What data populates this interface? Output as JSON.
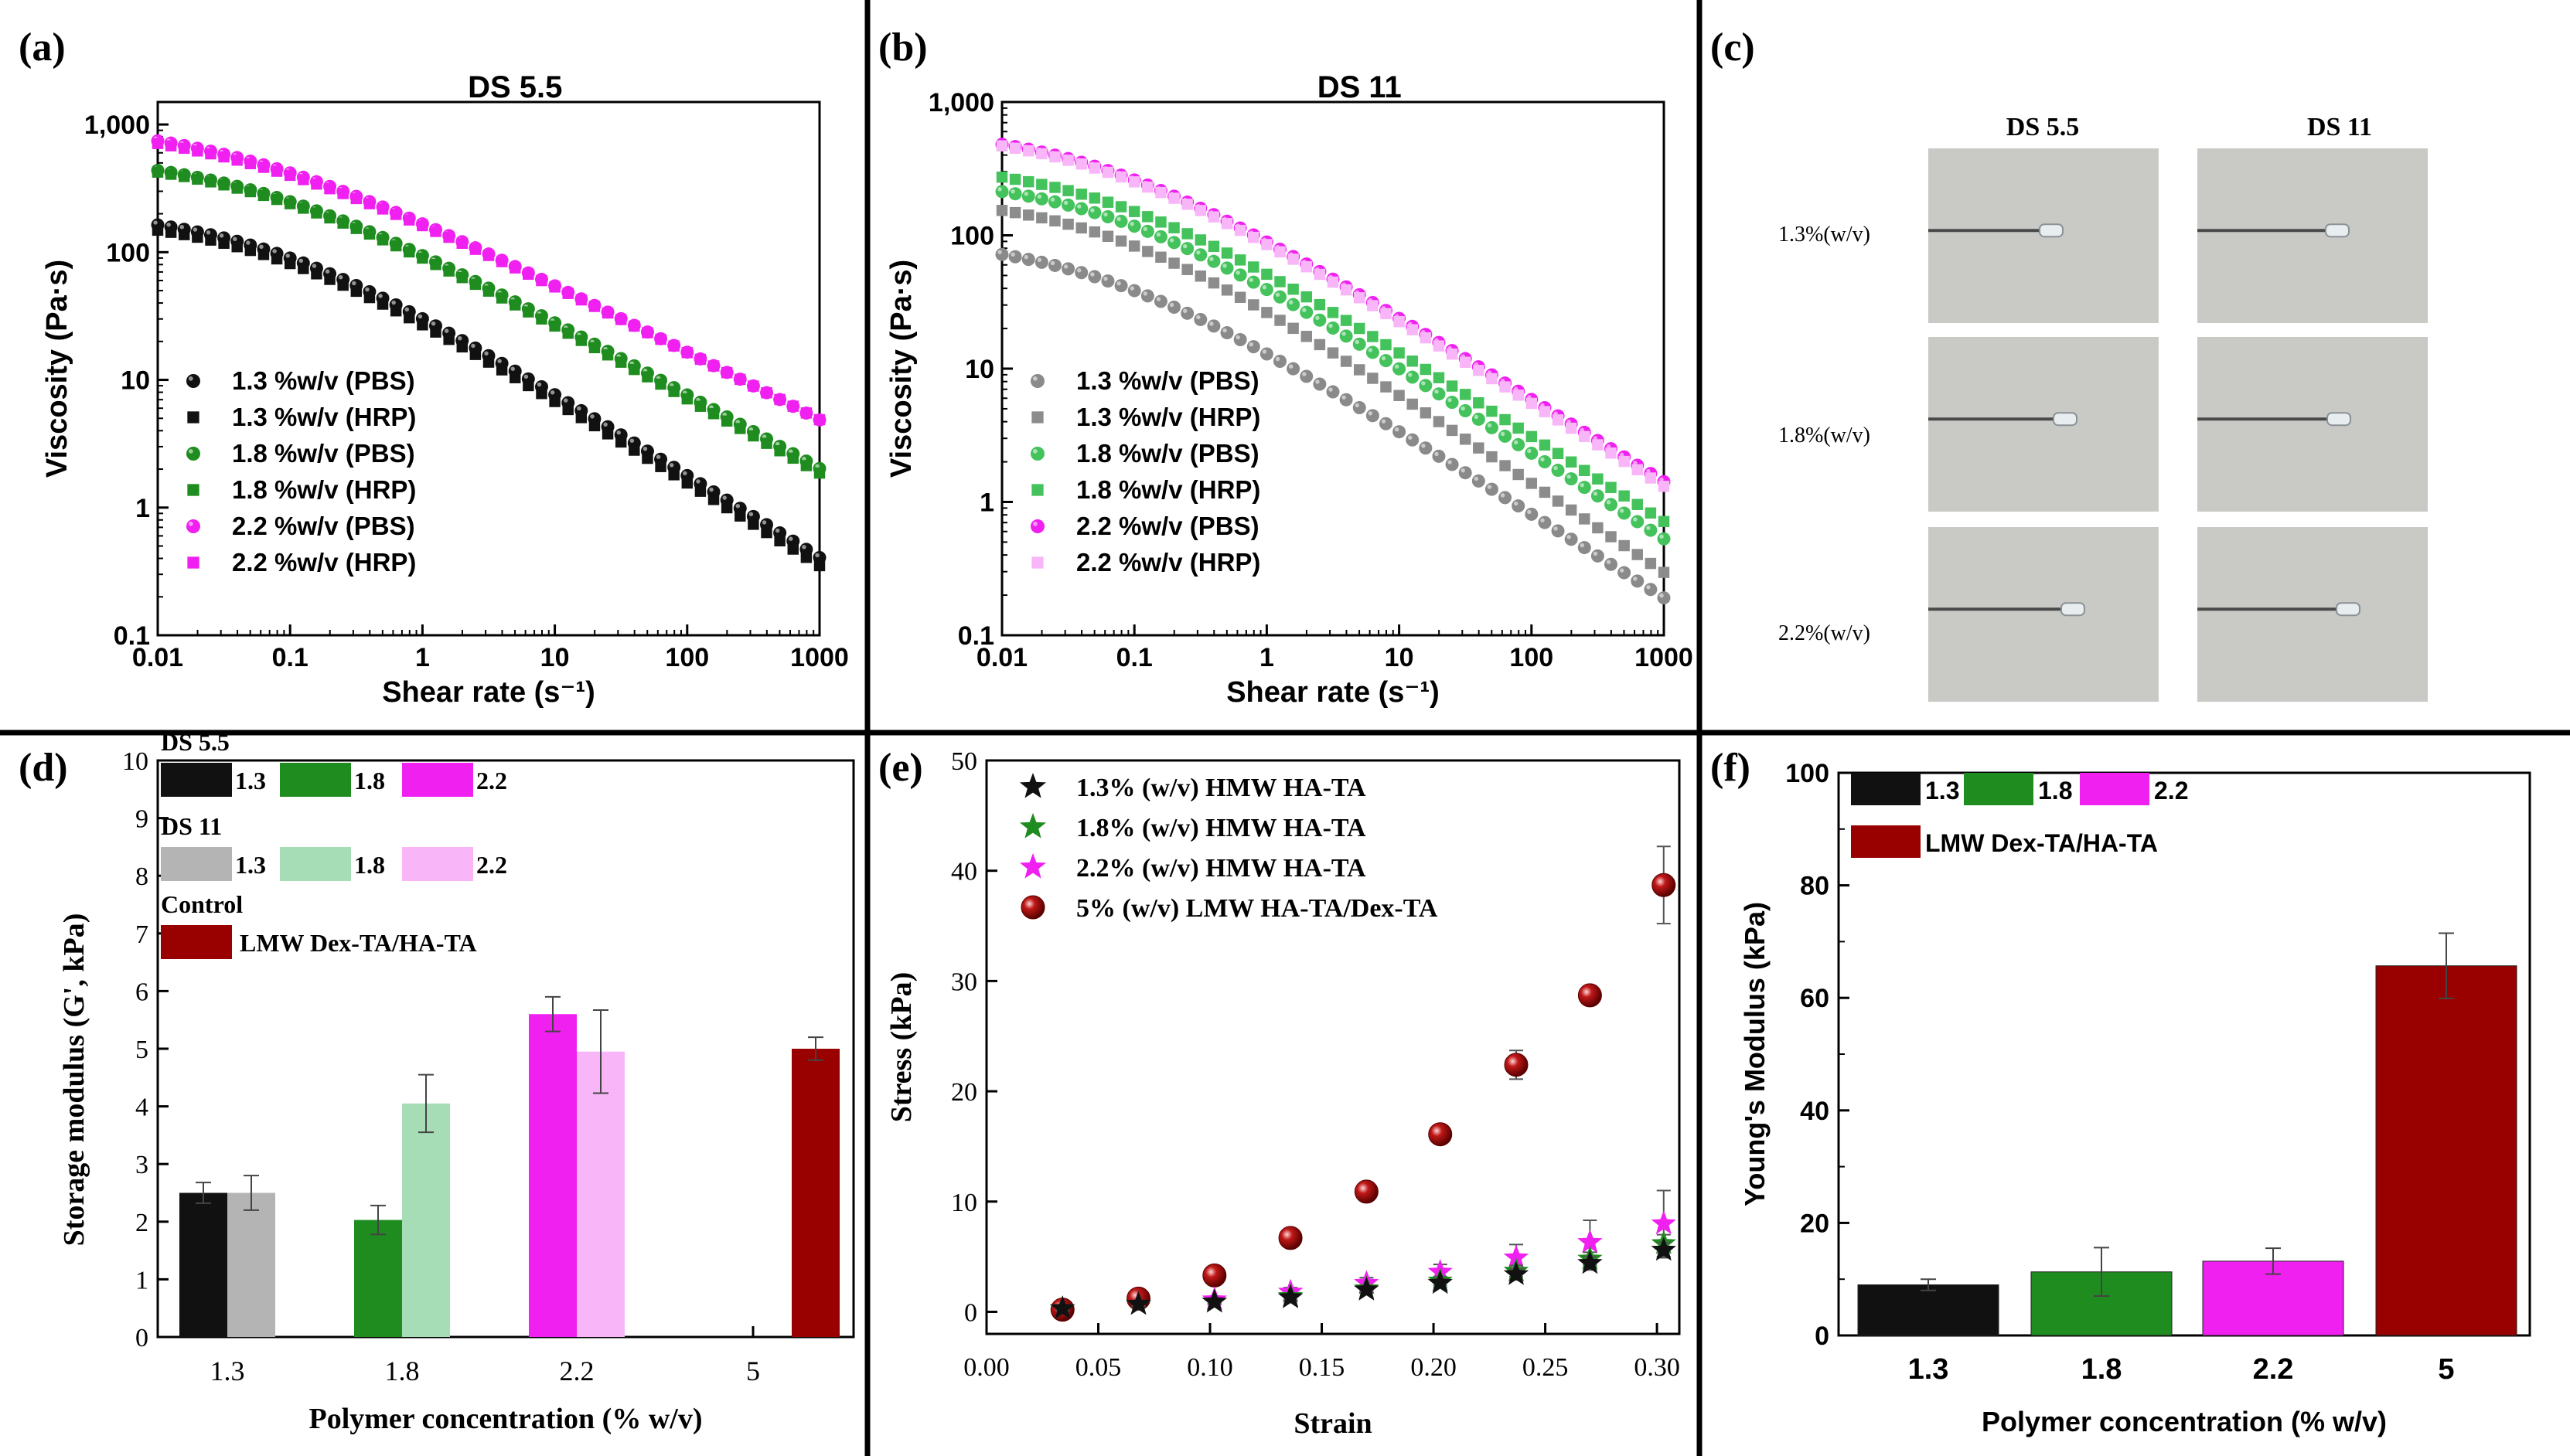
{
  "panel_labels": [
    "(a)",
    "(b)",
    "(c)",
    "(d)",
    "(e)",
    "(f)"
  ],
  "series_colors": {
    "black": "#111111",
    "green": "#1f8c1f",
    "magenta": "#f020f0",
    "gray": "#8a8a8a",
    "mid_gray": "#8c8c8c",
    "light_green": "#a6dcb6",
    "bright_green": "#44c25c",
    "light_pink": "#f8b6f8",
    "dark_red": "#990000"
  },
  "photo_panel": {
    "col_labels": [
      "DS 5.5",
      "DS 11"
    ],
    "row_labels": [
      "1.3%(w/v)",
      "1.8%(w/v)",
      "2.2%(w/v)"
    ]
  },
  "chart_data": [
    {
      "id": "a",
      "type": "scatter",
      "title": "DS 5.5",
      "xlabel": "Shear rate (s⁻¹)",
      "ylabel": "Viscosity (Pa·s)",
      "xscale": "log",
      "yscale": "log",
      "xlim": [
        0.01,
        1000
      ],
      "ylim": [
        0.1,
        1500
      ],
      "xticks": [
        "0.01",
        "0.1",
        "1",
        "10",
        "100",
        "1000"
      ],
      "yticks": [
        "0.1",
        "1",
        "10",
        "100",
        "1,000"
      ],
      "legend_position": "bottom-left",
      "series": [
        {
          "name": "1.3 %w/v  (PBS)",
          "color": "#111111",
          "marker": "circle",
          "eta0": 215,
          "tc": 0.06,
          "n": 0.355
        },
        {
          "name": "1.3 %w/v  (HRP)",
          "color": "#111111",
          "marker": "square",
          "eta0": 195,
          "tc": 0.06,
          "n": 0.35
        },
        {
          "name": "1.8 %w/v  (PBS)",
          "color": "#1f8c1f",
          "marker": "circle",
          "eta0": 600,
          "tc": 0.055,
          "n": 0.42
        },
        {
          "name": "1.8 %w/v  (HRP)",
          "color": "#1f8c1f",
          "marker": "square",
          "eta0": 580,
          "tc": 0.055,
          "n": 0.415
        },
        {
          "name": "2.2 %w/v  (PBS)",
          "color": "#f020f0",
          "marker": "circle",
          "eta0": 1100,
          "tc": 0.04,
          "n": 0.465
        },
        {
          "name": "2.2 %w/v  (HRP)",
          "color": "#f020f0",
          "marker": "square",
          "eta0": 1050,
          "tc": 0.04,
          "n": 0.47
        }
      ]
    },
    {
      "id": "b",
      "type": "scatter",
      "title": "DS 11",
      "xlabel": "Shear rate (s⁻¹)",
      "ylabel": "Viscosity (Pa·s)",
      "xscale": "log",
      "yscale": "log",
      "xlim": [
        0.01,
        1000
      ],
      "ylim": [
        0.1,
        1000
      ],
      "xticks": [
        "0.01",
        "0.1",
        "1",
        "10",
        "100",
        "1000"
      ],
      "yticks": [
        "0.1",
        "1",
        "10",
        "100",
        "1,000"
      ],
      "legend_position": "bottom-left",
      "series": [
        {
          "name": "1.3 %w/v  (PBS)",
          "color": "#8a8a8a",
          "marker": "circle",
          "eta0": 98,
          "tc": 0.05,
          "n": 0.37
        },
        {
          "name": "1.3 %w/v  (HRP)",
          "color": "#8c8c8c",
          "marker": "square",
          "eta0": 200,
          "tc": 0.06,
          "n": 0.33
        },
        {
          "name": "1.8 %w/v  (PBS)",
          "color": "#44c25c",
          "marker": "circle",
          "eta0": 280,
          "tc": 0.06,
          "n": 0.355
        },
        {
          "name": "1.8 %w/v  (HRP)",
          "color": "#44c25c",
          "marker": "square",
          "eta0": 360,
          "tc": 0.06,
          "n": 0.36
        },
        {
          "name": "2.2 %w/v  (PBS)",
          "color": "#f020f0",
          "marker": "circle",
          "eta0": 660,
          "tc": 0.05,
          "n": 0.38
        },
        {
          "name": "2.2 %w/v  (HRP)",
          "color": "#f8b6f8",
          "marker": "square",
          "eta0": 640,
          "tc": 0.05,
          "n": 0.375
        }
      ]
    },
    {
      "id": "d",
      "type": "bar",
      "xlabel": "Polymer concentration (% w/v)",
      "ylabel": "Storage modulus (G', kPa)",
      "ylim": [
        0,
        10
      ],
      "categories": [
        "1.3",
        "1.8",
        "2.2",
        "5"
      ],
      "legend_groups": [
        {
          "title": "DS 5.5",
          "items": [
            "1.3",
            "1.8",
            "2.2"
          ]
        },
        {
          "title": "DS 11",
          "items": [
            "1.3",
            "1.8",
            "2.2"
          ]
        },
        {
          "title": "Control",
          "items": [
            "LMW Dex-TA/HA-TA"
          ]
        }
      ],
      "bars": [
        {
          "category": "1.3",
          "group": "DS 5.5",
          "value": 2.5,
          "error": 0.18,
          "color": "#111111"
        },
        {
          "category": "1.3",
          "group": "DS 11",
          "value": 2.5,
          "error": 0.3,
          "color": "#b4b4b4"
        },
        {
          "category": "1.8",
          "group": "DS 5.5",
          "value": 2.03,
          "error": 0.25,
          "color": "#1f8c1f"
        },
        {
          "category": "1.8",
          "group": "DS 11",
          "value": 4.05,
          "error": 0.5,
          "color": "#a6dcb6"
        },
        {
          "category": "2.2",
          "group": "DS 5.5",
          "value": 5.6,
          "error": 0.3,
          "color": "#f020f0"
        },
        {
          "category": "2.2",
          "group": "DS 11",
          "value": 4.95,
          "error": 0.72,
          "color": "#f8b6f8"
        },
        {
          "category": "5",
          "group": "Control",
          "value": 5.0,
          "error": 0.2,
          "color": "#990000"
        }
      ]
    },
    {
      "id": "e",
      "type": "scatter",
      "xlabel": "Strain",
      "ylabel": "Stress (kPa)",
      "xlim": [
        0,
        0.31
      ],
      "ylim": [
        -2,
        50
      ],
      "xticks": [
        "0.00",
        "0.05",
        "0.10",
        "0.15",
        "0.20",
        "0.25",
        "0.30"
      ],
      "yticks": [
        "0",
        "10",
        "20",
        "30",
        "40",
        "50"
      ],
      "legend_position": "top-left",
      "x": [
        0.034,
        0.068,
        0.102,
        0.136,
        0.17,
        0.203,
        0.237,
        0.27,
        0.303
      ],
      "series": [
        {
          "name": "1.3% (w/v) HMW HA-TA",
          "color": "#111111",
          "marker": "star",
          "values": [
            0.3,
            0.7,
            0.9,
            1.3,
            2.0,
            2.6,
            3.4,
            4.4,
            5.6
          ],
          "errors": [
            0.2,
            0.2,
            0.2,
            0.3,
            0.3,
            0.4,
            0.5,
            0.6,
            0.7
          ]
        },
        {
          "name": "1.8% (w/v) HMW HA-TA",
          "color": "#1f8c1f",
          "marker": "star",
          "values": [
            0.3,
            0.7,
            0.9,
            1.4,
            2.1,
            2.8,
            3.7,
            4.8,
            6.2
          ],
          "errors": [
            0.2,
            0.2,
            0.2,
            0.3,
            0.3,
            0.4,
            0.5,
            0.6,
            0.8
          ]
        },
        {
          "name": "2.2% (w/v) HMW HA-TA",
          "color": "#f020f0",
          "marker": "star",
          "values": [
            0.3,
            0.7,
            1.1,
            1.8,
            2.6,
            3.6,
            4.9,
            6.3,
            8.0
          ],
          "errors": [
            0.2,
            0.2,
            0.3,
            0.4,
            0.5,
            0.7,
            1.2,
            2.0,
            3.0
          ]
        },
        {
          "name": "5%  (w/v)  LMW HA-TA/Dex-TA",
          "color": "#990000",
          "marker": "sphere",
          "values": [
            0.2,
            1.2,
            3.3,
            6.7,
            10.9,
            16.1,
            22.4,
            28.7,
            38.7
          ],
          "errors": [
            0.2,
            0.2,
            0.3,
            0.4,
            0.5,
            0.5,
            1.3,
            0.6,
            3.5
          ]
        }
      ]
    },
    {
      "id": "f",
      "type": "bar",
      "xlabel": "Polymer concentration (% w/v)",
      "ylabel": "Young's Modulus (kPa)",
      "ylim": [
        0,
        100
      ],
      "yticks": [
        "0",
        "20",
        "40",
        "60",
        "80",
        "100"
      ],
      "categories": [
        "1.3",
        "1.8",
        "2.2",
        "5"
      ],
      "legend_items": [
        {
          "label": "1.3",
          "color": "#111111"
        },
        {
          "label": "1.8",
          "color": "#1f8c1f"
        },
        {
          "label": "2.2",
          "color": "#f020f0"
        },
        {
          "label": "LMW Dex-TA/HA-TA",
          "color": "#990000"
        }
      ],
      "bars": [
        {
          "category": "1.3",
          "value": 9.0,
          "error": 1.0,
          "color": "#111111"
        },
        {
          "category": "1.8",
          "value": 11.3,
          "error": 4.3,
          "color": "#1f8c1f"
        },
        {
          "category": "2.2",
          "value": 13.2,
          "error": 2.3,
          "color": "#f020f0"
        },
        {
          "category": "5",
          "value": 65.7,
          "error": 5.8,
          "color": "#990000"
        }
      ]
    }
  ]
}
